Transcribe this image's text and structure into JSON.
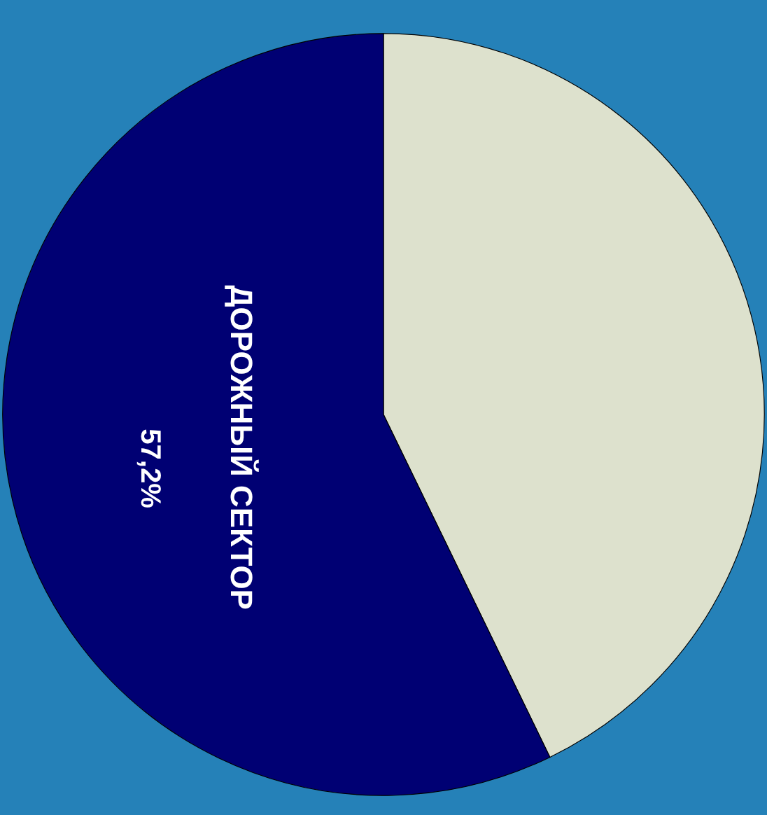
{
  "chart_data": {
    "type": "pie",
    "categories": [
      null,
      "ДОРОЖНЫЙ СЕКТОР"
    ],
    "values": [
      42.8,
      57.2
    ],
    "colors": [
      "#dde1cd",
      "#000073"
    ],
    "value_labels": [
      null,
      "57,2%"
    ]
  }
}
